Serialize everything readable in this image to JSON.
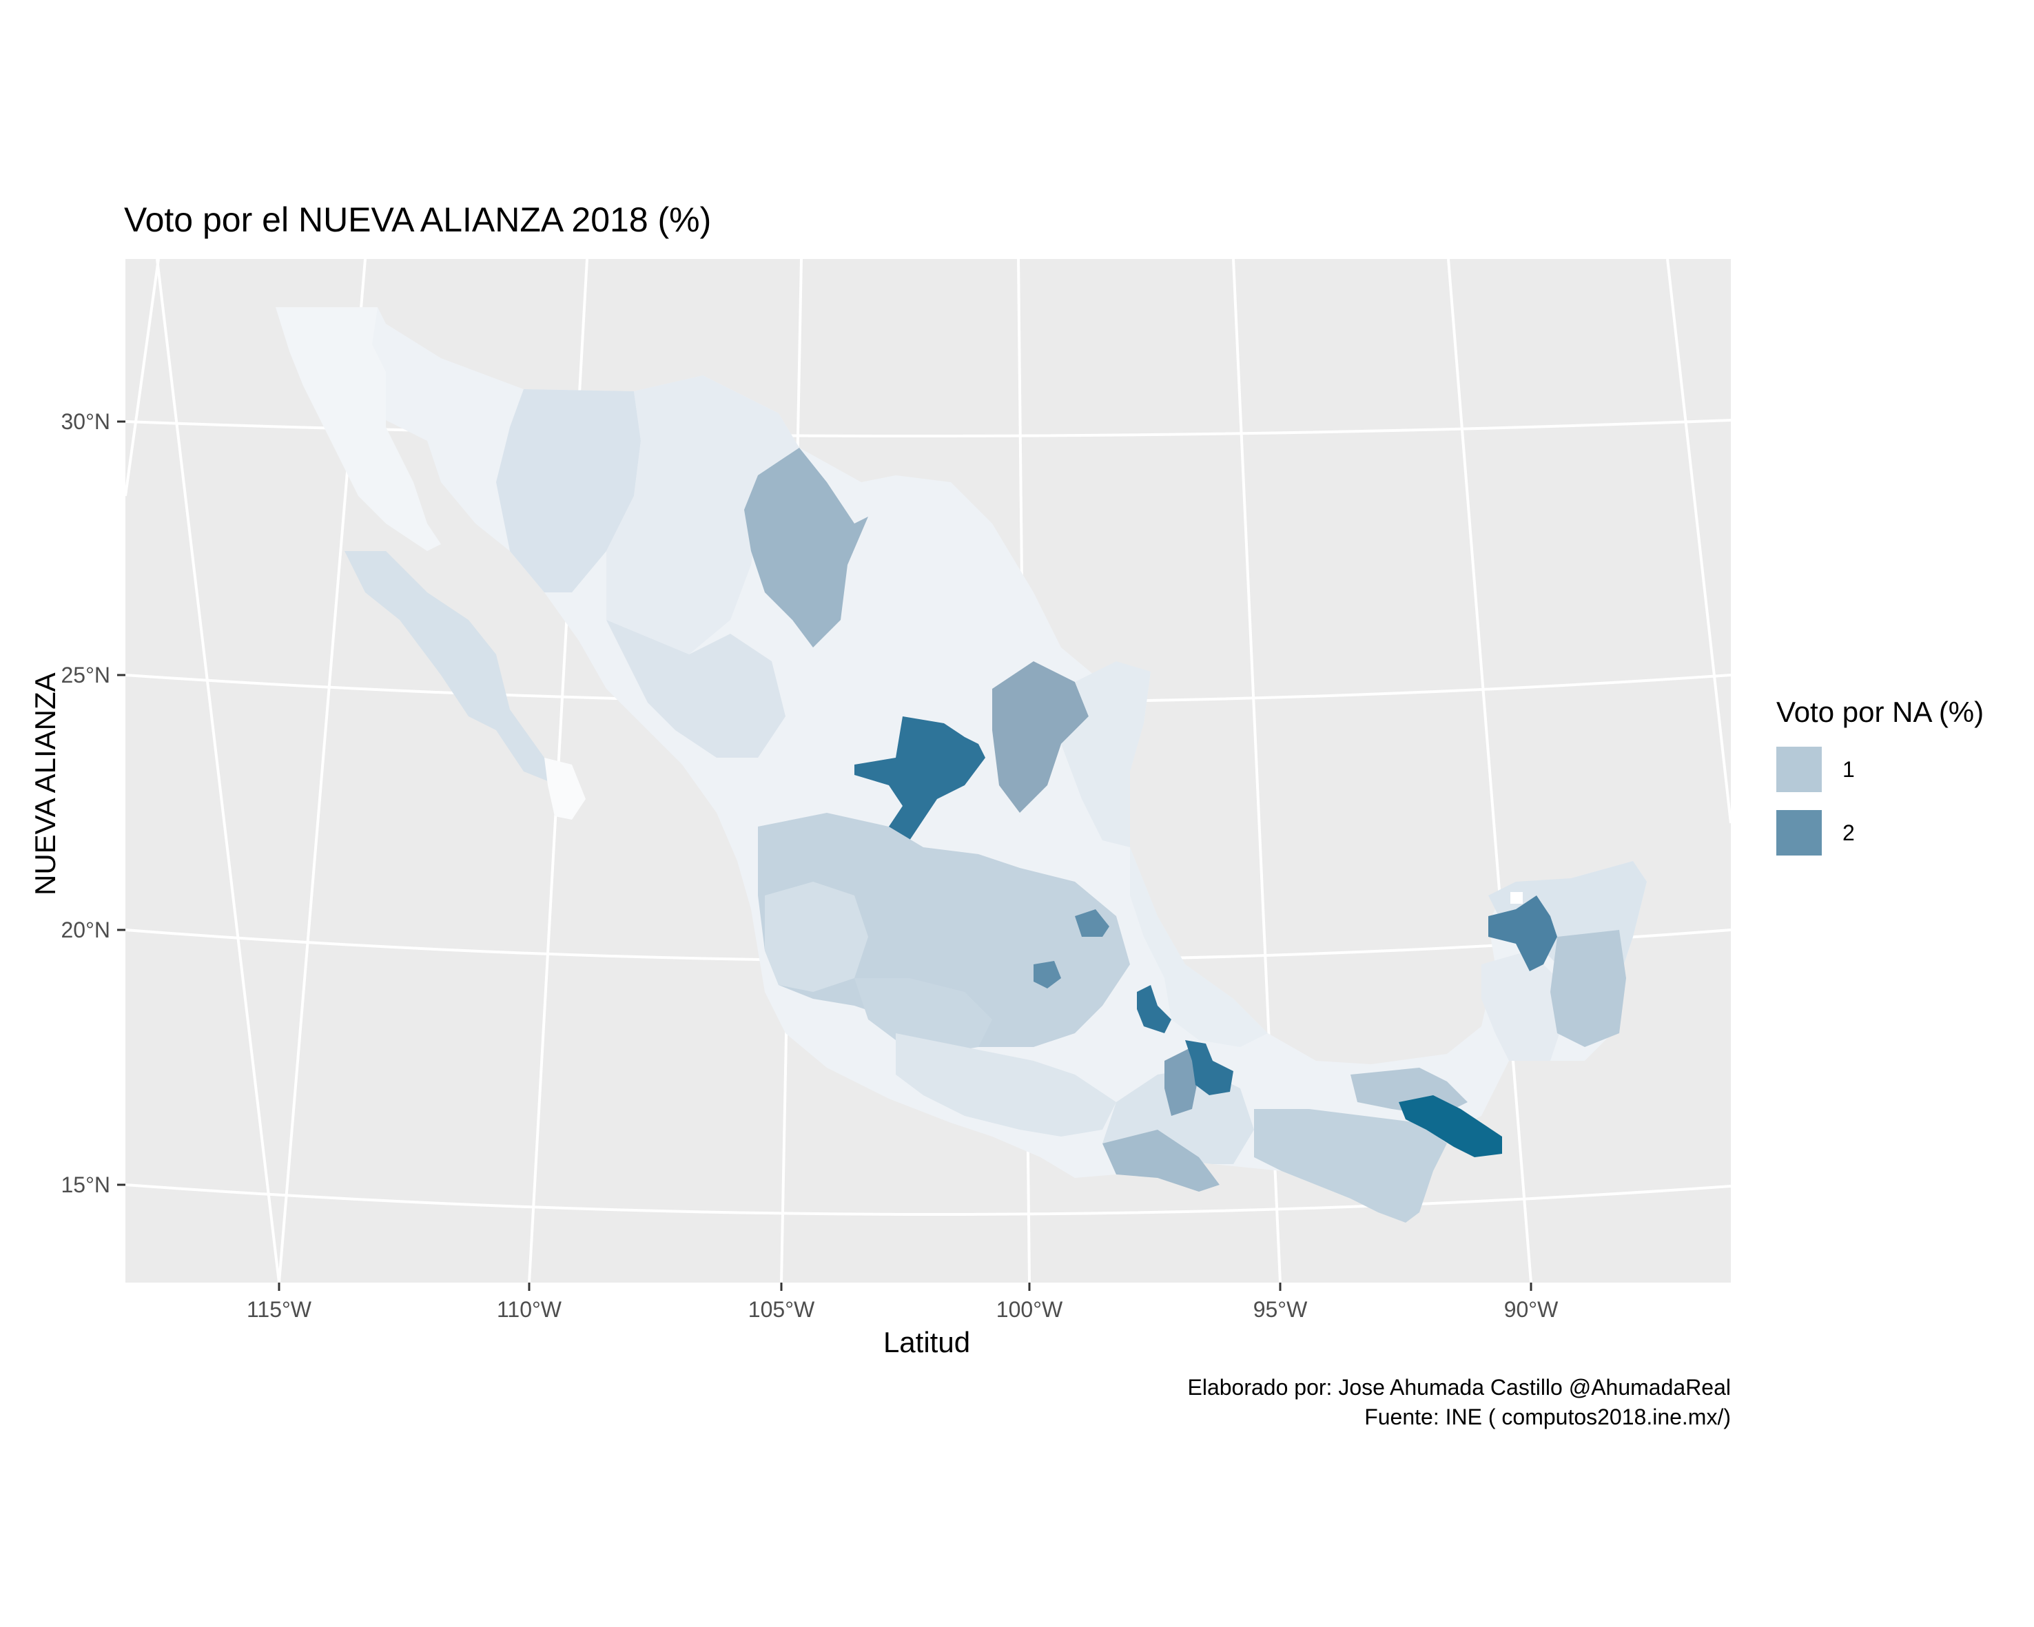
{
  "title": "Voto por el NUEVA ALIANZA 2018 (%)",
  "axes": {
    "xlabel": "Latitud",
    "ylabel": "NUEVA ALIANZA",
    "x_ticks": [
      "115°W",
      "110°W",
      "105°W",
      "100°W",
      "95°W",
      "90°W"
    ],
    "y_ticks": [
      "30°N",
      "25°N",
      "20°N",
      "15°N"
    ]
  },
  "legend": {
    "title": "Voto por NA (%)",
    "items": [
      {
        "label": "1",
        "color": "#b5c9d7"
      },
      {
        "label": "2",
        "color": "#6592ad"
      }
    ]
  },
  "caption": {
    "line1": "Elaborado por: Jose Ahumada Castillo @AhumadaReal",
    "line2": "Fuente: INE ( computos2018.ine.mx/)"
  },
  "colors": {
    "panel": "#ebebeb",
    "grid": "#ffffff",
    "lightest": "#f2f5f8",
    "light": "#dde6ed",
    "mid": "#b5c9d7",
    "strong": "#8eacc1",
    "high": "#2e7499",
    "max": "#0f6a8f"
  }
}
